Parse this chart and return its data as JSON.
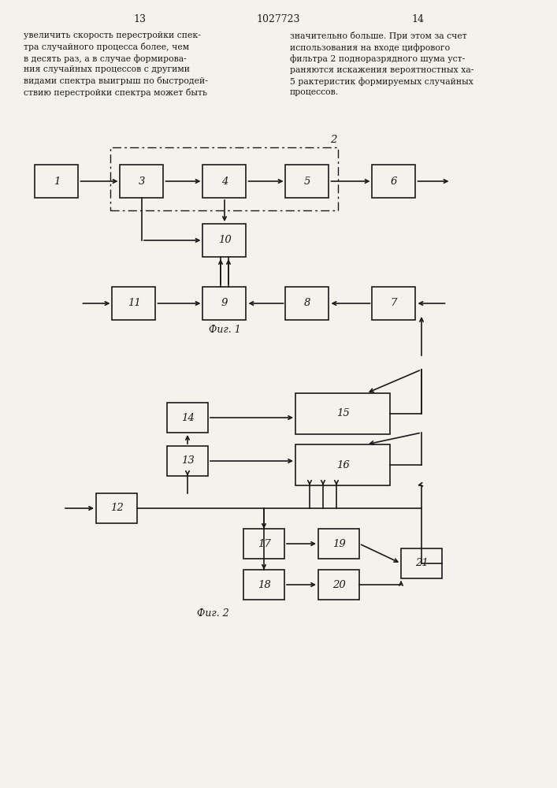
{
  "bg": "#f5f2eb",
  "fg": "#1a1a1a",
  "header": "1027723",
  "pg_l": "13",
  "pg_r": "14",
  "fig1_cap": "Фиг. 1",
  "fig2_cap": "Фиг. 2",
  "left_col": "увеличить скорость перестройки спек-\nтра случайного процесса более, чем\nв десять раз, а в случае формирова-\nния случайных процессов с другими\nвидами спектра выигрыш по быстродей-\nствию перестройки спектра может быть",
  "right_col": "значительно больше. При этом за счет\nиспользования на входе цифрового\nфильтра 2 подноразрядного шума уст-\nраняются искажения вероятностных ха-\n5 рактеристик формируемых случайных\nпроцессов."
}
